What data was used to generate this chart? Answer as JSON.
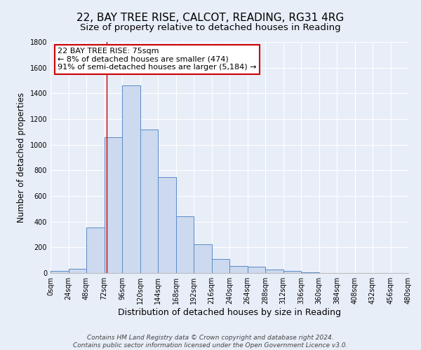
{
  "title": "22, BAY TREE RISE, CALCOT, READING, RG31 4RG",
  "subtitle": "Size of property relative to detached houses in Reading",
  "xlabel": "Distribution of detached houses by size in Reading",
  "ylabel": "Number of detached properties",
  "footer_line1": "Contains HM Land Registry data © Crown copyright and database right 2024.",
  "footer_line2": "Contains public sector information licensed under the Open Government Licence v3.0.",
  "annotation_title": "22 BAY TREE RISE: 75sqm",
  "annotation_line1": "← 8% of detached houses are smaller (474)",
  "annotation_line2": "91% of semi-detached houses are larger (5,184) →",
  "property_size": 75,
  "bin_edges": [
    0,
    24,
    48,
    72,
    96,
    120,
    144,
    168,
    192,
    216,
    240,
    264,
    288,
    312,
    336,
    360,
    384,
    408,
    432,
    456,
    480
  ],
  "bar_heights": [
    15,
    35,
    355,
    1060,
    1460,
    1120,
    745,
    440,
    225,
    110,
    55,
    50,
    30,
    15,
    5,
    2,
    2,
    1,
    1,
    1
  ],
  "bar_facecolor": "#ccd9ee",
  "bar_edgecolor": "#5b8bc9",
  "bg_color": "#e8eef8",
  "grid_color": "#ffffff",
  "annotation_box_color": "#ffffff",
  "annotation_box_edgecolor": "#cc0000",
  "redline_color": "#cc0000",
  "ylim": [
    0,
    1800
  ],
  "yticks": [
    0,
    200,
    400,
    600,
    800,
    1000,
    1200,
    1400,
    1600,
    1800
  ],
  "title_fontsize": 11,
  "subtitle_fontsize": 9.5,
  "xlabel_fontsize": 9,
  "ylabel_fontsize": 8.5,
  "tick_fontsize": 7,
  "footer_fontsize": 6.5,
  "annotation_fontsize": 8
}
